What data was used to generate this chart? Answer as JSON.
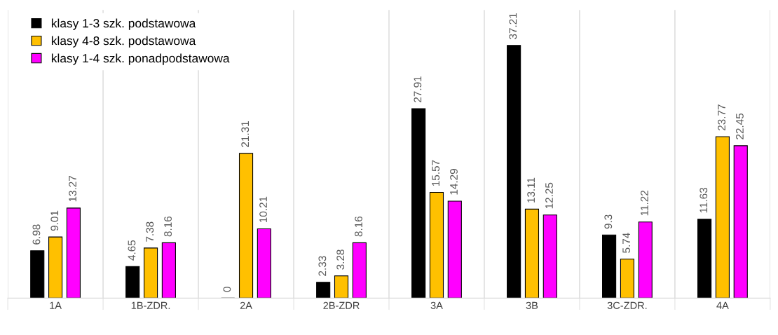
{
  "chart_data": {
    "type": "bar",
    "categories": [
      "1A",
      "1B-ZDR.",
      "2A",
      "2B-ZDR",
      "3A",
      "3B",
      "3C-ZDR.",
      "4A"
    ],
    "series": [
      {
        "name": "klasy 1-3 szk. podstawowa",
        "color": "#000000",
        "values": [
          6.98,
          4.65,
          0,
          2.33,
          27.91,
          37.21,
          9.3,
          11.63
        ]
      },
      {
        "name": "klasy 4-8 szk. podstawowa",
        "color": "#ffc000",
        "values": [
          9.01,
          7.38,
          21.31,
          3.28,
          15.57,
          13.11,
          5.74,
          23.77
        ]
      },
      {
        "name": "klasy 1-4 szk. ponadpodstawowa",
        "color": "#ff00ff",
        "values": [
          13.27,
          8.16,
          10.21,
          8.16,
          14.29,
          12.25,
          11.22,
          22.45
        ]
      }
    ],
    "data_labels": true,
    "legend": "top left",
    "grid": "x"
  }
}
